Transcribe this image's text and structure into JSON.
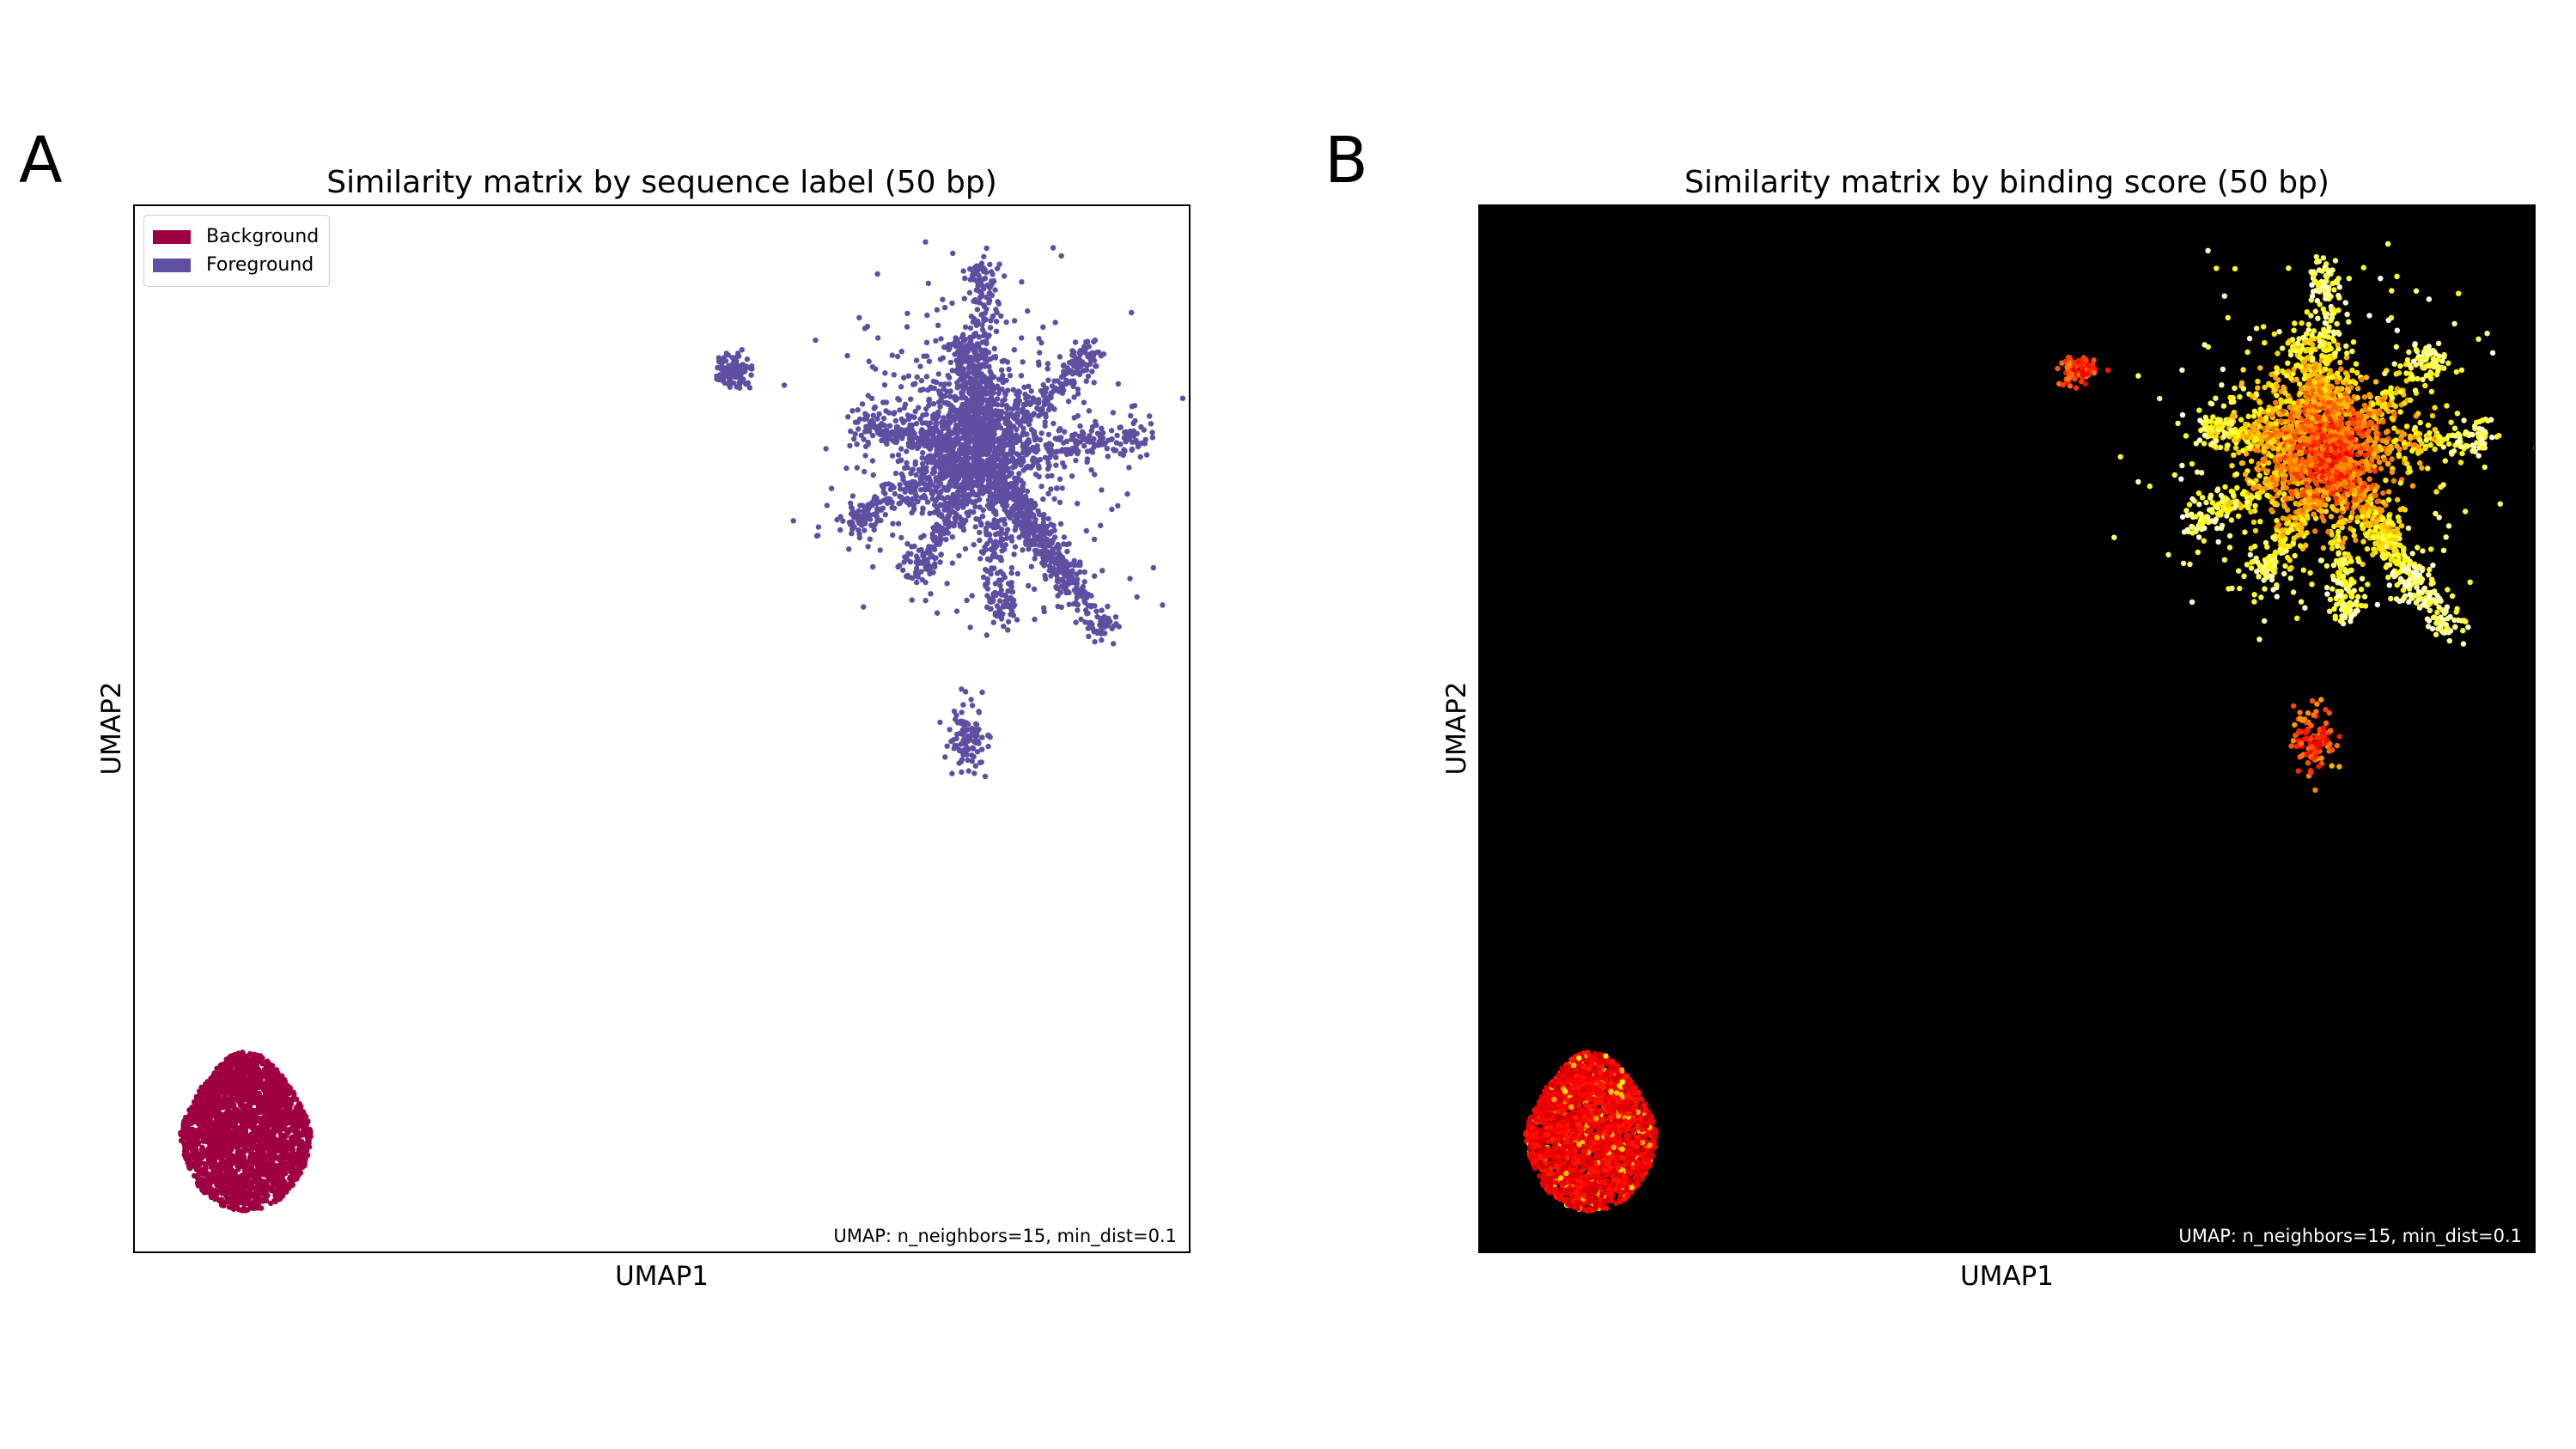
{
  "panels": {
    "a": {
      "letter": "A",
      "annotation": "UMAP: n_neighbors=15, min_dist=0.1",
      "legend": [
        {
          "label": "Background",
          "color": "#9e0142"
        },
        {
          "label": "Foreground",
          "color": "#5e4fa2"
        }
      ]
    },
    "b": {
      "letter": "B",
      "annotation": "UMAP: n_neighbors=15, min_dist=0.1"
    }
  },
  "chart_data": [
    {
      "type": "scatter",
      "title": "Similarity matrix by sequence label (50 bp)",
      "xlabel": "UMAP1",
      "ylabel": "UMAP2",
      "xlim": [
        0,
        100
      ],
      "ylim": [
        0,
        100
      ],
      "grid": false,
      "ticks": "none",
      "background": "#ffffff",
      "legend_position": "top-left",
      "series": [
        {
          "name": "Background",
          "color": "#9e0142",
          "clusters": [
            {
              "center": [
                10.5,
                11.8
              ],
              "spread": [
                6.5,
                8.0
              ],
              "shape": "dense-oval"
            }
          ]
        },
        {
          "name": "Foreground",
          "color": "#5e4fa2",
          "clusters": [
            {
              "center": [
                80.5,
                76.5
              ],
              "spread": [
                14,
                15
              ],
              "shape": "branched"
            },
            {
              "center": [
                56.5,
                84.3
              ],
              "spread": [
                1.8,
                1.6
              ],
              "shape": "small"
            },
            {
              "center": [
                78.9,
                49.3
              ],
              "spread": [
                2.2,
                3.6
              ],
              "shape": "small"
            }
          ]
        }
      ]
    },
    {
      "type": "scatter",
      "title": "Similarity matrix by binding score (50 bp)",
      "xlabel": "UMAP1",
      "ylabel": "UMAP2",
      "xlim": [
        0,
        100
      ],
      "ylim": [
        0,
        100
      ],
      "grid": false,
      "ticks": "none",
      "background": "#000000",
      "colormap": "hot",
      "point_groups": [
        {
          "center": [
            10.5,
            11.8
          ],
          "spread": [
            6.5,
            8.0
          ],
          "shape": "dense-oval",
          "score_range": "low"
        },
        {
          "center": [
            80.5,
            76.5
          ],
          "spread": [
            14,
            15
          ],
          "shape": "branched",
          "score_range": "high"
        },
        {
          "center": [
            56.5,
            84.3
          ],
          "spread": [
            1.8,
            1.6
          ],
          "shape": "small",
          "score_range": "high"
        },
        {
          "center": [
            78.9,
            49.3
          ],
          "spread": [
            2.2,
            3.6
          ],
          "shape": "small",
          "score_range": "high"
        }
      ]
    }
  ]
}
